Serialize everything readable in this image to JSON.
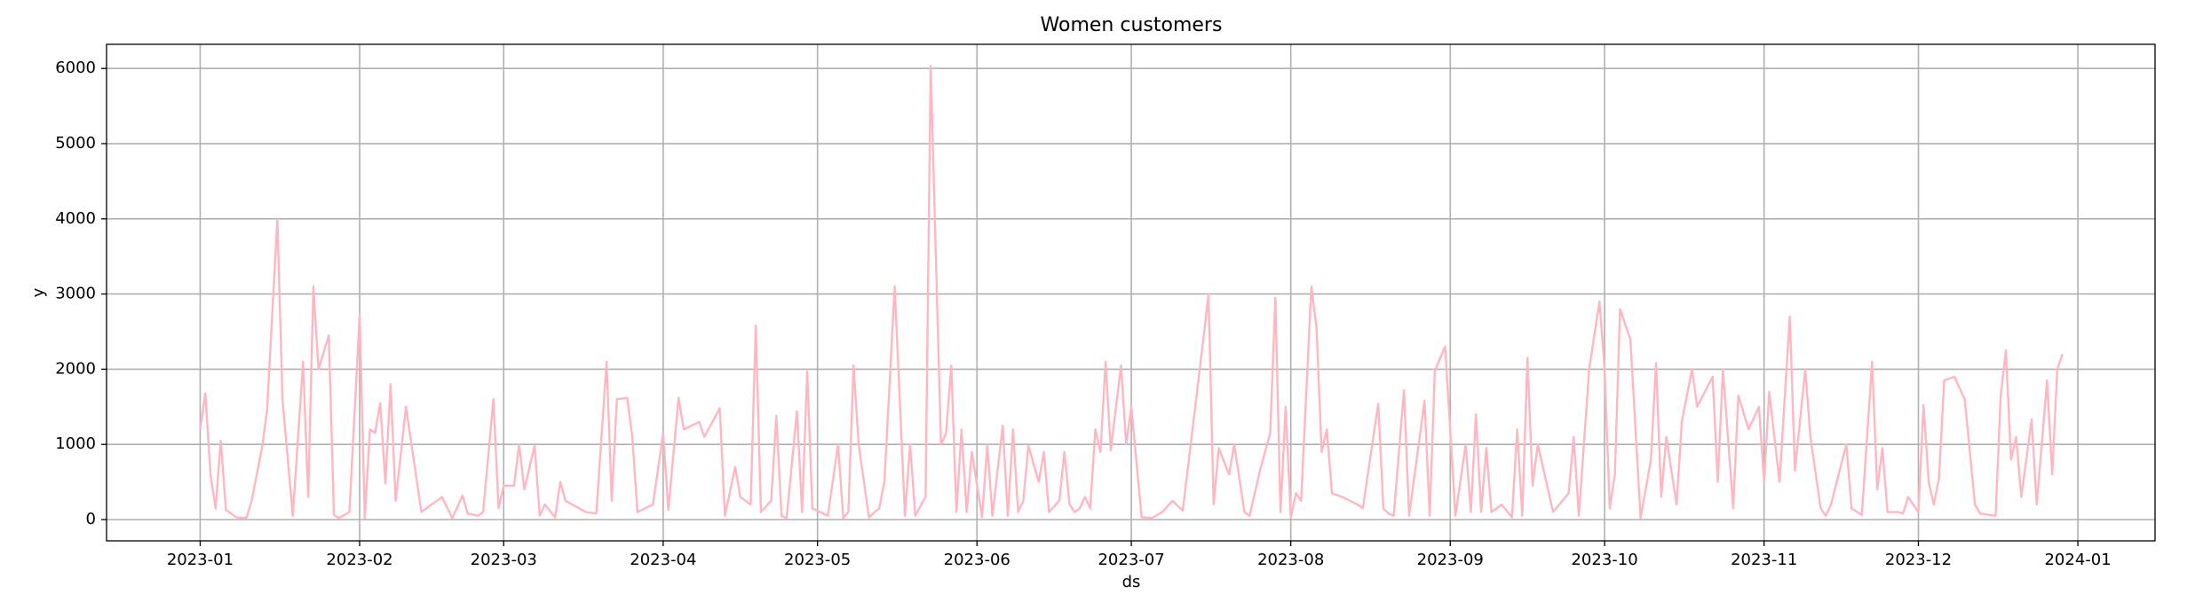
{
  "chart_data": {
    "type": "line",
    "title": "Women customers",
    "xlabel": "ds",
    "ylabel": "y",
    "x": [
      0,
      1,
      2,
      3,
      4,
      5,
      7,
      9,
      10,
      12,
      13,
      15,
      16,
      18,
      20,
      21,
      22,
      23,
      25,
      26,
      27,
      29,
      31,
      32,
      33,
      34,
      35,
      36,
      37,
      38,
      40,
      43,
      47,
      49,
      51,
      52,
      54,
      55,
      57,
      58,
      59,
      61,
      62,
      63,
      65,
      66,
      67,
      69,
      70,
      71,
      75,
      77,
      79,
      80,
      81,
      83,
      84,
      85,
      88,
      90,
      91,
      93,
      94,
      97,
      98,
      101,
      102,
      104,
      105,
      107,
      108,
      109,
      111,
      112,
      113,
      114,
      116,
      117,
      118,
      119,
      122,
      124,
      125,
      126,
      127,
      128,
      130,
      132,
      133,
      135,
      137,
      138,
      139,
      141,
      142,
      144,
      145,
      146,
      147,
      148,
      149,
      150,
      152,
      153,
      154,
      156,
      157,
      158,
      159,
      160,
      161,
      163,
      164,
      165,
      167,
      168,
      169,
      170,
      171,
      172,
      173,
      174,
      175,
      176,
      177,
      179,
      180,
      181,
      183,
      185,
      187,
      189,
      191,
      195,
      196,
      197,
      198,
      200,
      201,
      203,
      204,
      206,
      208,
      209,
      210,
      211,
      212,
      213,
      214,
      216,
      217,
      218,
      219,
      220,
      222,
      225,
      226,
      229,
      230,
      231,
      232,
      234,
      235,
      238,
      239,
      240,
      242,
      244,
      246,
      247,
      248,
      249,
      250,
      251,
      253,
      255,
      256,
      257,
      258,
      259,
      260,
      263,
      266,
      267,
      268,
      270,
      272,
      273,
      274,
      275,
      276,
      278,
      280,
      282,
      283,
      284,
      285,
      287,
      288,
      290,
      291,
      294,
      295,
      296,
      298,
      299,
      301,
      303,
      304,
      305,
      307,
      309,
      310,
      312,
      313,
      315,
      316,
      317,
      320,
      321,
      323,
      325,
      326,
      327,
      328,
      330,
      331,
      332,
      334,
      335,
      336,
      337,
      338,
      339,
      341,
      343,
      345,
      346,
      349,
      350,
      351,
      352,
      353,
      354,
      356,
      357,
      359,
      360,
      361,
      362
    ],
    "values": [
      1200,
      1680,
      600,
      150,
      1050,
      130,
      30,
      20,
      250,
      950,
      1450,
      4000,
      1600,
      50,
      2100,
      300,
      3100,
      2000,
      2450,
      60,
      20,
      100,
      2720,
      20,
      1200,
      1150,
      1550,
      480,
      1800,
      250,
      1500,
      100,
      300,
      20,
      320,
      80,
      50,
      100,
      1600,
      150,
      450,
      450,
      1000,
      400,
      980,
      50,
      200,
      30,
      500,
      250,
      100,
      80,
      2100,
      250,
      1600,
      1620,
      1100,
      100,
      200,
      1150,
      130,
      1620,
      1200,
      1300,
      1100,
      1480,
      50,
      700,
      300,
      200,
      2580,
      100,
      250,
      1380,
      50,
      20,
      1440,
      100,
      1970,
      150,
      50,
      1000,
      20,
      100,
      2050,
      1000,
      30,
      150,
      500,
      3100,
      50,
      1000,
      50,
      300,
      6030,
      1000,
      1150,
      2050,
      100,
      1200,
      100,
      900,
      30,
      1000,
      50,
      1250,
      50,
      1200,
      100,
      250,
      980,
      500,
      900,
      100,
      250,
      900,
      200,
      100,
      150,
      300,
      150,
      1200,
      900,
      2100,
      920,
      2050,
      1000,
      1500,
      30,
      20,
      100,
      250,
      120,
      2400,
      3000,
      200,
      950,
      600,
      1000,
      100,
      50,
      650,
      1150,
      2950,
      100,
      1500,
      30,
      350,
      250,
      3100,
      2550,
      900,
      1200,
      350,
      300,
      200,
      150,
      1540,
      150,
      80,
      50,
      1720,
      50,
      1580,
      50,
      1980,
      2300,
      50,
      1000,
      100,
      1400,
      100,
      950,
      100,
      200,
      30,
      1200,
      50,
      2150,
      450,
      1000,
      100,
      350,
      1100,
      50,
      2000,
      2900,
      2000,
      150,
      600,
      2800,
      2400,
      20,
      800,
      2080,
      300,
      1100,
      200,
      1300,
      2000,
      1500,
      1900,
      500,
      2000,
      150,
      1650,
      1200,
      1500,
      500,
      1700,
      500,
      2700,
      650,
      2000,
      1100,
      150,
      50,
      200,
      1000,
      150,
      60,
      2100,
      400,
      950,
      100,
      100,
      80,
      300,
      100,
      1520,
      500,
      200,
      550,
      1850,
      1900,
      1600,
      200,
      80,
      50,
      1650,
      2250,
      800,
      1100,
      300,
      1330,
      200,
      1850,
      600,
      2000,
      2200
    ],
    "color": "#ffb6c1",
    "xlim": [
      -18.2,
      380
    ],
    "ylim": [
      -283,
      6321
    ],
    "xticks": [
      {
        "value": 0,
        "label": "2023-01"
      },
      {
        "value": 31,
        "label": "2023-02"
      },
      {
        "value": 59,
        "label": "2023-03"
      },
      {
        "value": 90,
        "label": "2023-04"
      },
      {
        "value": 120,
        "label": "2023-05"
      },
      {
        "value": 151,
        "label": "2023-06"
      },
      {
        "value": 181,
        "label": "2023-07"
      },
      {
        "value": 212,
        "label": "2023-08"
      },
      {
        "value": 243,
        "label": "2023-09"
      },
      {
        "value": 273,
        "label": "2023-10"
      },
      {
        "value": 304,
        "label": "2023-11"
      },
      {
        "value": 334,
        "label": "2023-12"
      },
      {
        "value": 365,
        "label": "2024-01"
      }
    ],
    "yticks": [
      0,
      1000,
      2000,
      3000,
      4000,
      5000,
      6000
    ],
    "grid": true
  }
}
